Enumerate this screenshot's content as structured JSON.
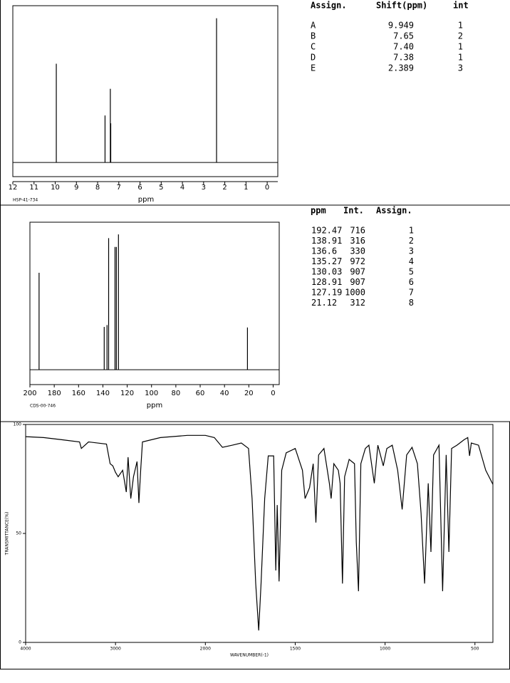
{
  "chart_data": [
    {
      "type": "stick",
      "xlabel": "ppm",
      "code": "HSP-41-734",
      "x": [
        9.949,
        7.65,
        7.4,
        7.38,
        2.389
      ],
      "values": [
        63,
        30,
        47,
        25,
        92
      ],
      "xlim": [
        12,
        -0.5
      ],
      "xticks": [
        12,
        11,
        10,
        9,
        8,
        7,
        6,
        5,
        4,
        3,
        2,
        1,
        0
      ],
      "ylim": [
        -9,
        100
      ],
      "color": "#000000"
    },
    {
      "type": "stick",
      "xlabel": "ppm",
      "code": "CDS-00-746",
      "x": [
        192.47,
        138.91,
        136.6,
        135.27,
        130.03,
        128.91,
        127.19,
        21.12
      ],
      "values": [
        716,
        316,
        330,
        972,
        907,
        907,
        1000,
        312
      ],
      "xlim": [
        200,
        -5
      ],
      "xticks": [
        200,
        180,
        160,
        140,
        120,
        100,
        80,
        60,
        40,
        20,
        0
      ],
      "ylim": [
        -110,
        1090
      ],
      "color": "#000000"
    },
    {
      "type": "line",
      "xlabel": "WAVENUMBER(-1)",
      "ylabel": "TRANSMITTANCE(%)",
      "x": [
        4000,
        3800,
        3600,
        3400,
        3380,
        3300,
        3100,
        3060,
        3030,
        3000,
        2970,
        2920,
        2880,
        2860,
        2830,
        2800,
        2760,
        2740,
        2720,
        2700,
        2500,
        2200,
        2000,
        1950,
        1905,
        1850,
        1800,
        1760,
        1740,
        1720,
        1703,
        1690,
        1670,
        1650,
        1620,
        1608,
        1600,
        1590,
        1575,
        1550,
        1500,
        1460,
        1445,
        1420,
        1400,
        1385,
        1370,
        1340,
        1310,
        1300,
        1285,
        1260,
        1250,
        1237,
        1225,
        1200,
        1170,
        1160,
        1148,
        1135,
        1110,
        1090,
        1060,
        1040,
        1010,
        990,
        960,
        930,
        905,
        880,
        850,
        820,
        800,
        780,
        760,
        745,
        730,
        700,
        680,
        660,
        645,
        630,
        600,
        560,
        540,
        530,
        520,
        480,
        440,
        400
      ],
      "values": [
        94.4,
        94,
        93,
        92,
        89,
        92,
        91,
        82,
        81,
        78,
        76,
        79,
        69,
        85,
        66,
        76,
        83,
        64,
        79,
        92,
        94,
        95,
        95,
        94,
        89.5,
        90.5,
        91.5,
        89,
        66,
        27,
        5.5,
        27,
        66,
        85.6,
        85.6,
        33,
        63,
        28,
        79,
        87,
        89,
        79,
        66,
        71,
        82,
        55,
        86,
        89,
        73,
        66,
        82,
        79,
        73,
        27,
        76,
        84,
        82,
        46,
        23.5,
        82,
        89,
        90.5,
        73,
        90.5,
        81,
        89,
        90.5,
        79,
        61,
        86,
        89.5,
        82,
        59.5,
        27,
        73,
        41.5,
        86,
        90.5,
        23.5,
        86,
        41.5,
        89,
        90.5,
        93,
        94,
        85.6,
        91.5,
        90.5,
        79,
        72.5
      ],
      "xlim": [
        4000,
        400
      ],
      "xticks": [
        4000,
        3000,
        2000,
        1500,
        1000,
        500
      ],
      "ylim": [
        0,
        100
      ],
      "yticks": [
        0,
        50,
        100
      ],
      "x_scale_change": {
        "at": 2000,
        "factor": 2
      },
      "color": "#000000"
    }
  ],
  "proton_table": {
    "header": [
      "Assign.",
      "Shift(ppm)",
      "int"
    ],
    "rows": [
      [
        "A",
        "9.949",
        1
      ],
      [
        "B",
        "7.65",
        2
      ],
      [
        "C",
        "7.40",
        1
      ],
      [
        "D",
        "7.38",
        1
      ],
      [
        "E",
        "2.389",
        3
      ]
    ]
  },
  "carbon_table": {
    "header": [
      "ppm",
      "Int.",
      "Assign."
    ],
    "assign": [
      1,
      2,
      3,
      4,
      5,
      6,
      7,
      8
    ]
  }
}
